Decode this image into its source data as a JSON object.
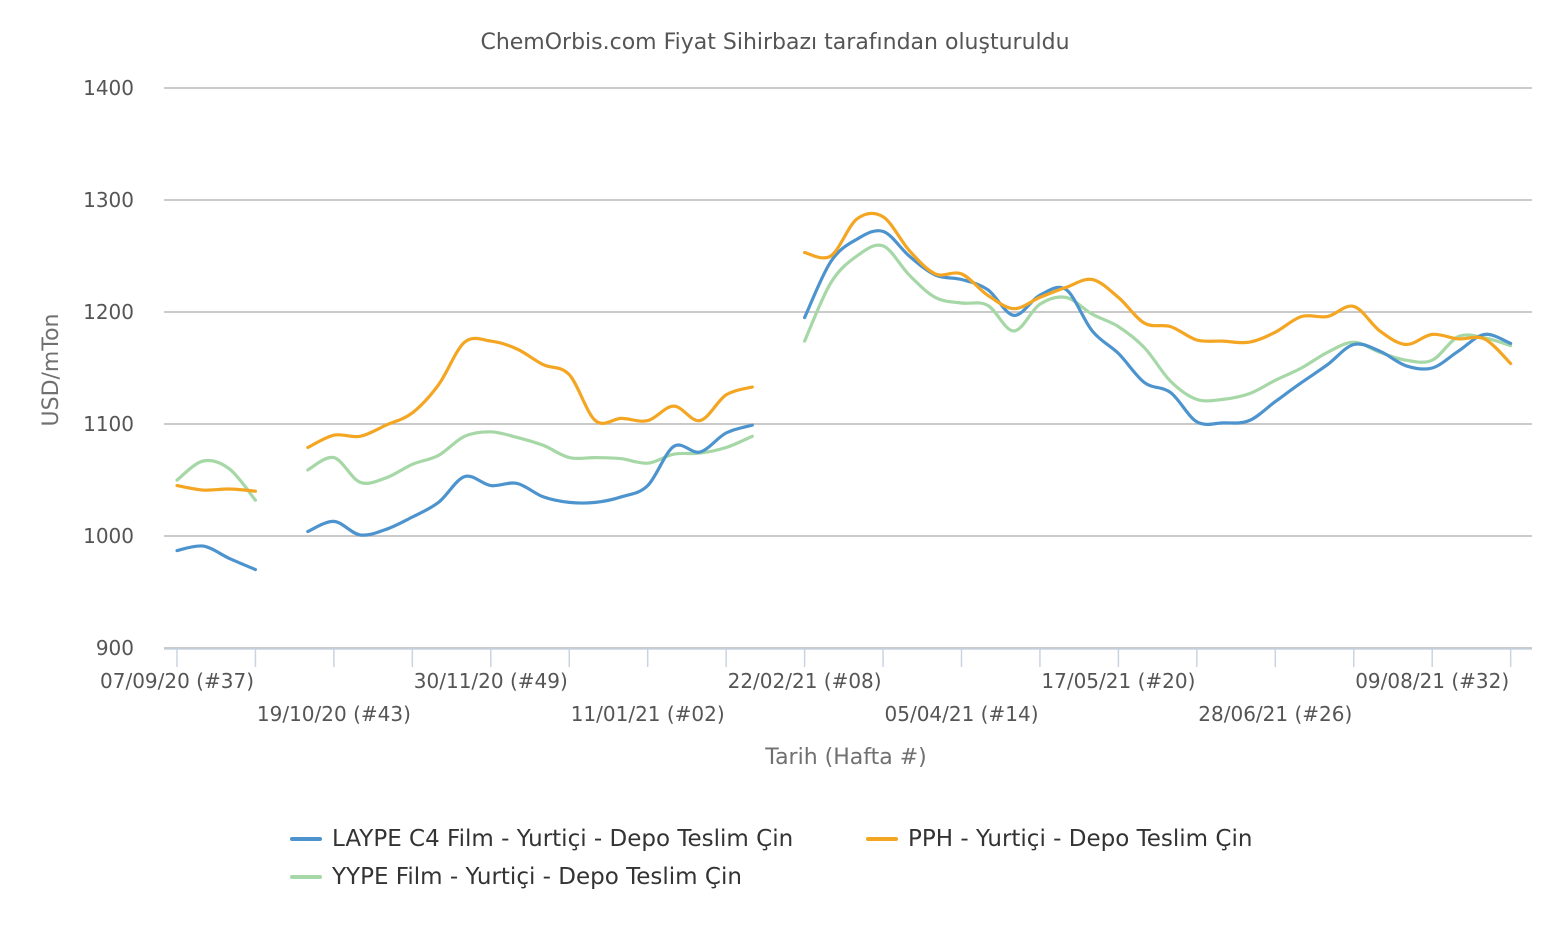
{
  "chart_data": {
    "type": "line",
    "title": "ChemOrbis.com Fiyat Sihirbazı tarafından oluşturuldu",
    "xlabel": "Tarih (Hafta #)",
    "ylabel": "USD/mTon",
    "ylim": [
      900,
      1400
    ],
    "yticks": [
      "900",
      "1000",
      "1100",
      "1200",
      "1300",
      "1400"
    ],
    "grid": true,
    "legend_position": "bottom",
    "x_tick_labels": [
      "07/09/20 (#37)",
      "19/10/20 (#43)",
      "30/11/20 (#49)",
      "11/01/21 (#02)",
      "22/02/21 (#08)",
      "05/04/21 (#14)",
      "17/05/21 (#20)",
      "28/06/21 (#26)",
      "09/08/21 (#32)"
    ],
    "x": [
      "07/09/20",
      "14/09/20",
      "21/09/20",
      "28/09/20",
      "05/10/20",
      "12/10/20",
      "19/10/20",
      "26/10/20",
      "02/11/20",
      "09/11/20",
      "16/11/20",
      "23/11/20",
      "30/11/20",
      "07/12/20",
      "14/12/20",
      "21/12/20",
      "28/12/20",
      "04/01/21",
      "11/01/21",
      "18/01/21",
      "25/01/21",
      "01/02/21",
      "08/02/21",
      "15/02/21",
      "22/02/21",
      "01/03/21",
      "08/03/21",
      "15/03/21",
      "22/03/21",
      "29/03/21",
      "05/04/21",
      "12/04/21",
      "19/04/21",
      "26/04/21",
      "03/05/21",
      "10/05/21",
      "17/05/21",
      "24/05/21",
      "31/05/21",
      "07/06/21",
      "14/06/21",
      "21/06/21",
      "28/06/21",
      "05/07/21",
      "12/07/21",
      "19/07/21",
      "26/07/21",
      "02/08/21",
      "09/08/21",
      "16/08/21",
      "23/08/21",
      "30/08/21"
    ],
    "series": [
      {
        "name": "LAYPE C4 Film - Yurtiçi  - Depo Teslim Çin",
        "color": "#4d94ce",
        "values": [
          987,
          991,
          980,
          970,
          null,
          1004,
          1013,
          1001,
          1006,
          1017,
          1030,
          1053,
          1045,
          1047,
          1035,
          1030,
          1030,
          1035,
          1045,
          1080,
          1075,
          1092,
          1099,
          null,
          1195,
          1245,
          1265,
          1272,
          1250,
          1233,
          1229,
          1220,
          1197,
          1215,
          1220,
          1183,
          1163,
          1137,
          1128,
          1102,
          1101,
          1103,
          1120,
          1137,
          1153,
          1171,
          1165,
          1152,
          1150,
          1165,
          1180,
          1172
        ]
      },
      {
        "name": "PPH - Yurtiçi  - Depo Teslim Çin",
        "color": "#f4a623",
        "values": [
          1045,
          1041,
          1042,
          1040,
          null,
          1079,
          1090,
          1089,
          1099,
          1110,
          1135,
          1173,
          1174,
          1167,
          1153,
          1144,
          1103,
          1105,
          1103,
          1116,
          1103,
          1126,
          1133,
          null,
          1253,
          1250,
          1283,
          1285,
          1255,
          1234,
          1234,
          1215,
          1203,
          1213,
          1222,
          1229,
          1213,
          1190,
          1187,
          1175,
          1174,
          1173,
          1182,
          1196,
          1196,
          1205,
          1183,
          1171,
          1180,
          1176,
          1176,
          1154
        ]
      },
      {
        "name": "YYPE Film - Yurtiçi  - Depo Teslim Çin",
        "color": "#a6d7a6",
        "values": [
          1050,
          1067,
          1060,
          1032,
          null,
          1059,
          1070,
          1048,
          1052,
          1064,
          1072,
          1089,
          1093,
          1088,
          1081,
          1070,
          1070,
          1069,
          1065,
          1073,
          1074,
          1079,
          1089,
          null,
          1174,
          1226,
          1250,
          1259,
          1233,
          1213,
          1208,
          1206,
          1183,
          1207,
          1213,
          1198,
          1187,
          1168,
          1138,
          1122,
          1122,
          1127,
          1139,
          1150,
          1164,
          1173,
          1164,
          1157,
          1157,
          1178,
          1177,
          1170
        ]
      }
    ]
  }
}
